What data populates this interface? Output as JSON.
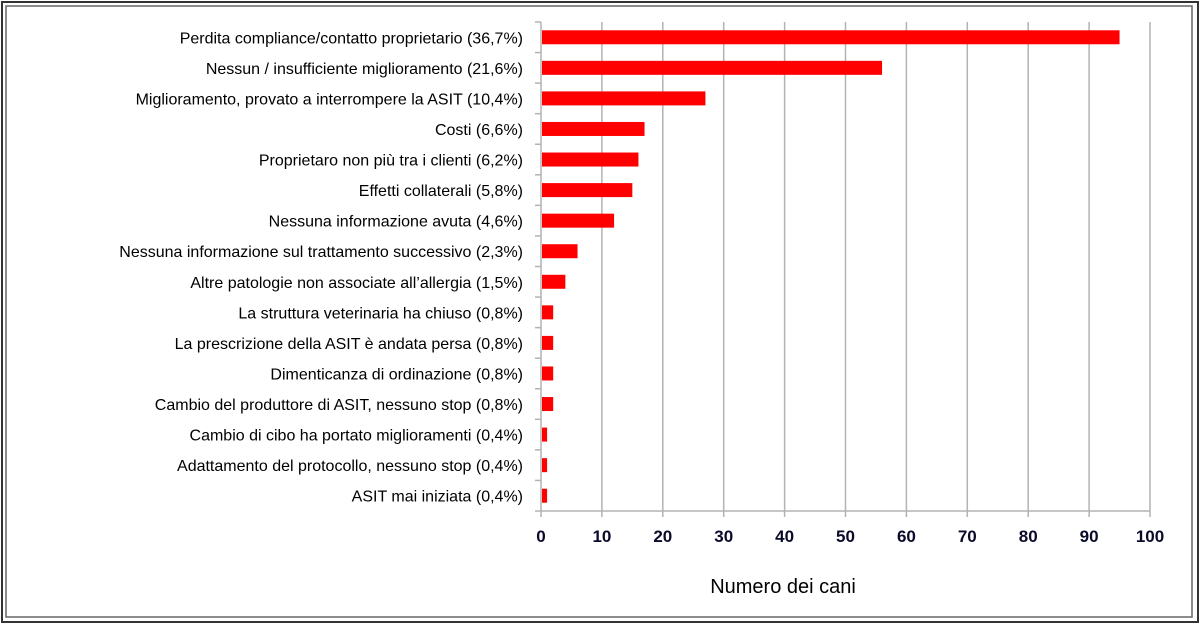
{
  "chart_data": {
    "type": "bar",
    "orientation": "horizontal",
    "title": "",
    "xlabel": "Numero dei cani",
    "ylabel": "",
    "xlim": [
      0,
      100
    ],
    "xticks": [
      0,
      10,
      20,
      30,
      40,
      50,
      60,
      70,
      80,
      90,
      100
    ],
    "grid": "vertical",
    "bar_color": "#ff0000",
    "categories": [
      "Perdita compliance/contatto proprietario (36,7%)",
      "Nessun / insufficiente miglioramento (21,6%)",
      "Miglioramento, provato a interrompere la ASIT (10,4%)",
      "Costi (6,6%)",
      "Proprietaro non più tra i clienti (6,2%)",
      "Effetti collaterali (5,8%)",
      "Nessuna informazione avuta (4,6%)",
      "Nessuna informazione sul trattamento successivo (2,3%)",
      "Altre patologie non associate all’allergia (1,5%)",
      "La struttura veterinaria ha chiuso (0,8%)",
      "La prescrizione della ASIT è andata persa (0,8%)",
      "Dimenticanza di ordinazione (0,8%)",
      "Cambio del produttore di ASIT, nessuno stop (0,8%)",
      "Cambio di cibo ha portato miglioramenti (0,4%)",
      "Adattamento del protocollo, nessuno stop (0,4%)",
      "ASIT mai iniziata (0,4%)"
    ],
    "values": [
      95,
      56,
      27,
      17,
      16,
      15,
      12,
      6,
      4,
      2,
      2,
      2,
      2,
      1,
      1,
      1
    ]
  }
}
